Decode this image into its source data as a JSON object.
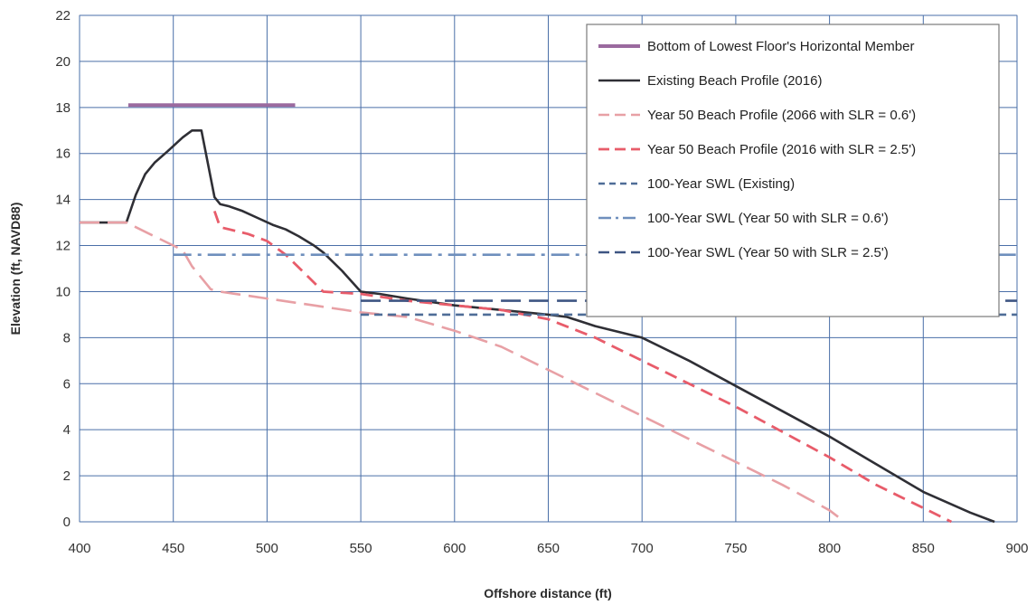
{
  "chart_data": {
    "type": "line",
    "xlabel": "Offshore distance (ft)",
    "ylabel": "Elevation (ft, NAVD88)",
    "xlim": [
      400,
      900
    ],
    "ylim": [
      0,
      22
    ],
    "xticks": [
      400,
      450,
      500,
      550,
      600,
      650,
      700,
      750,
      800,
      850,
      900
    ],
    "yticks": [
      0,
      2,
      4,
      6,
      8,
      10,
      12,
      14,
      16,
      18,
      20,
      22
    ],
    "grid": true,
    "legend_position": "top-right",
    "series": [
      {
        "name": "Bottom of Lowest Floor's Horizontal Member",
        "color": "#9b6a9f",
        "dash": "solid",
        "x": [
          426,
          515
        ],
        "y": [
          18.1,
          18.1
        ]
      },
      {
        "name": "Existing Beach Profile (2016)",
        "color": "#2f2f35",
        "dash": "solid",
        "x": [
          400,
          425,
          430,
          435,
          440,
          447,
          455,
          460,
          465,
          472,
          475,
          480,
          487,
          495,
          503,
          510,
          517,
          525,
          530,
          540,
          550,
          560,
          575,
          600,
          625,
          650,
          660,
          675,
          700,
          725,
          750,
          775,
          800,
          825,
          850,
          875,
          888
        ],
        "y": [
          13,
          13,
          14.2,
          15.1,
          15.6,
          16.1,
          16.7,
          17.0,
          17.0,
          14.1,
          13.8,
          13.7,
          13.5,
          13.2,
          12.9,
          12.7,
          12.4,
          12.0,
          11.7,
          10.9,
          10.0,
          9.9,
          9.7,
          9.4,
          9.2,
          9.0,
          8.9,
          8.5,
          8.0,
          7.0,
          5.9,
          4.8,
          3.7,
          2.5,
          1.3,
          0.4,
          0.0
        ]
      },
      {
        "name": "Year 50 Beach Profile (2066 with SLR = 0.6')",
        "color": "#e8a0a5",
        "dash": "longdash",
        "x": [
          400,
          425,
          440,
          455,
          460,
          470,
          475,
          500,
          525,
          550,
          575,
          600,
          625,
          650,
          675,
          700,
          725,
          750,
          775,
          800,
          808
        ],
        "y": [
          13,
          13,
          12.4,
          11.8,
          11.1,
          10.1,
          10.0,
          9.7,
          9.4,
          9.1,
          8.9,
          8.3,
          7.6,
          6.6,
          5.6,
          4.6,
          3.6,
          2.6,
          1.6,
          0.5,
          0.0
        ]
      },
      {
        "name": "Year 50 Beach Profile (2016 with SLR = 2.5')",
        "color": "#e85c6a",
        "dash": "dash",
        "x": [
          472,
          475,
          480,
          490,
          500,
          510,
          520,
          530,
          550,
          575,
          600,
          625,
          650,
          675,
          700,
          725,
          750,
          775,
          800,
          825,
          850,
          865
        ],
        "y": [
          13.5,
          12.8,
          12.7,
          12.5,
          12.2,
          11.6,
          10.8,
          10.0,
          9.9,
          9.6,
          9.4,
          9.2,
          8.8,
          8.0,
          7.0,
          6.0,
          5.0,
          3.9,
          2.8,
          1.6,
          0.6,
          0.0
        ]
      },
      {
        "name": "100-Year SWL (Existing)",
        "color": "#4f6d97",
        "dash": "shortdash",
        "x": [
          550,
          900
        ],
        "y": [
          9.0,
          9.0
        ]
      },
      {
        "name": "100-Year SWL (Year 50 with SLR = 0.6')",
        "color": "#6f8fbd",
        "dash": "dashdot",
        "x": [
          450,
          900
        ],
        "y": [
          11.6,
          11.6
        ]
      },
      {
        "name": "100-Year SWL (Year 50 with SLR = 2.5')",
        "color": "#3e5583",
        "dash": "longdash",
        "x": [
          550,
          900
        ],
        "y": [
          9.6,
          9.6
        ]
      }
    ]
  }
}
